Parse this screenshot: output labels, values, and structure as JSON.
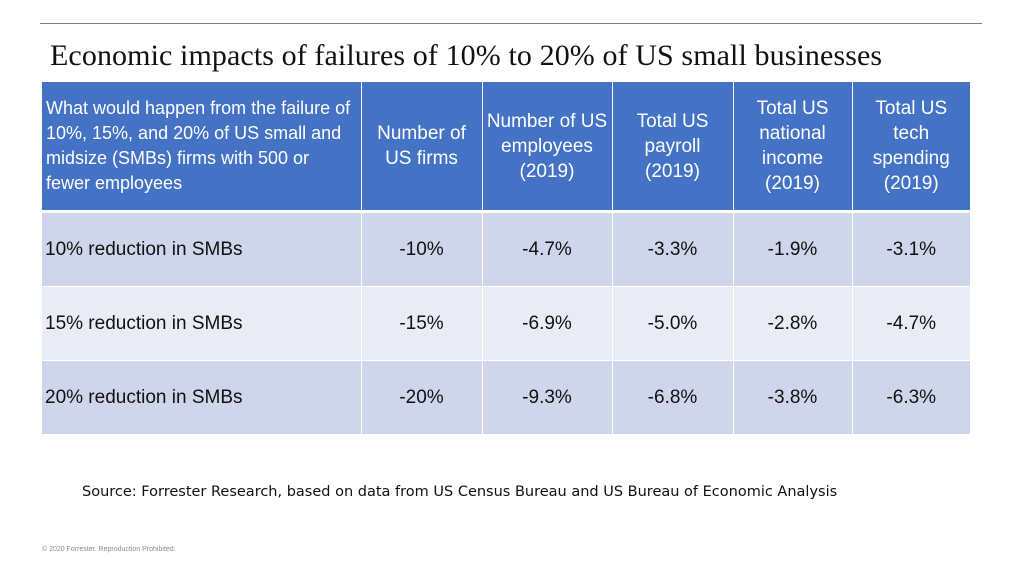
{
  "title": "Economic impacts of failures of 10% to 20% of US small businesses",
  "table": {
    "headers": [
      "What would happen from the failure of 10%, 15%, and 20% of US small and midsize (SMBs) firms with 500 or fewer employees",
      "Number of US firms",
      "Number of US employees (2019)",
      "Total US payroll (2019)",
      "Total US national income (2019)",
      "Total US tech spending (2019)"
    ],
    "rows": [
      [
        "10% reduction in SMBs",
        "-10%",
        "-4.7%",
        "-3.3%",
        "-1.9%",
        "-3.1%"
      ],
      [
        "15% reduction in SMBs",
        "-15%",
        "-6.9%",
        "-5.0%",
        "-2.8%",
        "-4.7%"
      ],
      [
        "20% reduction in SMBs",
        "-20%",
        "-9.3%",
        "-6.8%",
        "-3.8%",
        "-6.3%"
      ]
    ]
  },
  "source": "Source: Forrester Research, based on data from US Census Bureau and US Bureau of Economic Analysis",
  "copyright": "© 2020 Forrester. Reproduction Prohibited.",
  "colors": {
    "header_bg": "#4472c4",
    "row_dark": "#cfd5ea",
    "row_light": "#e9ebf5"
  }
}
